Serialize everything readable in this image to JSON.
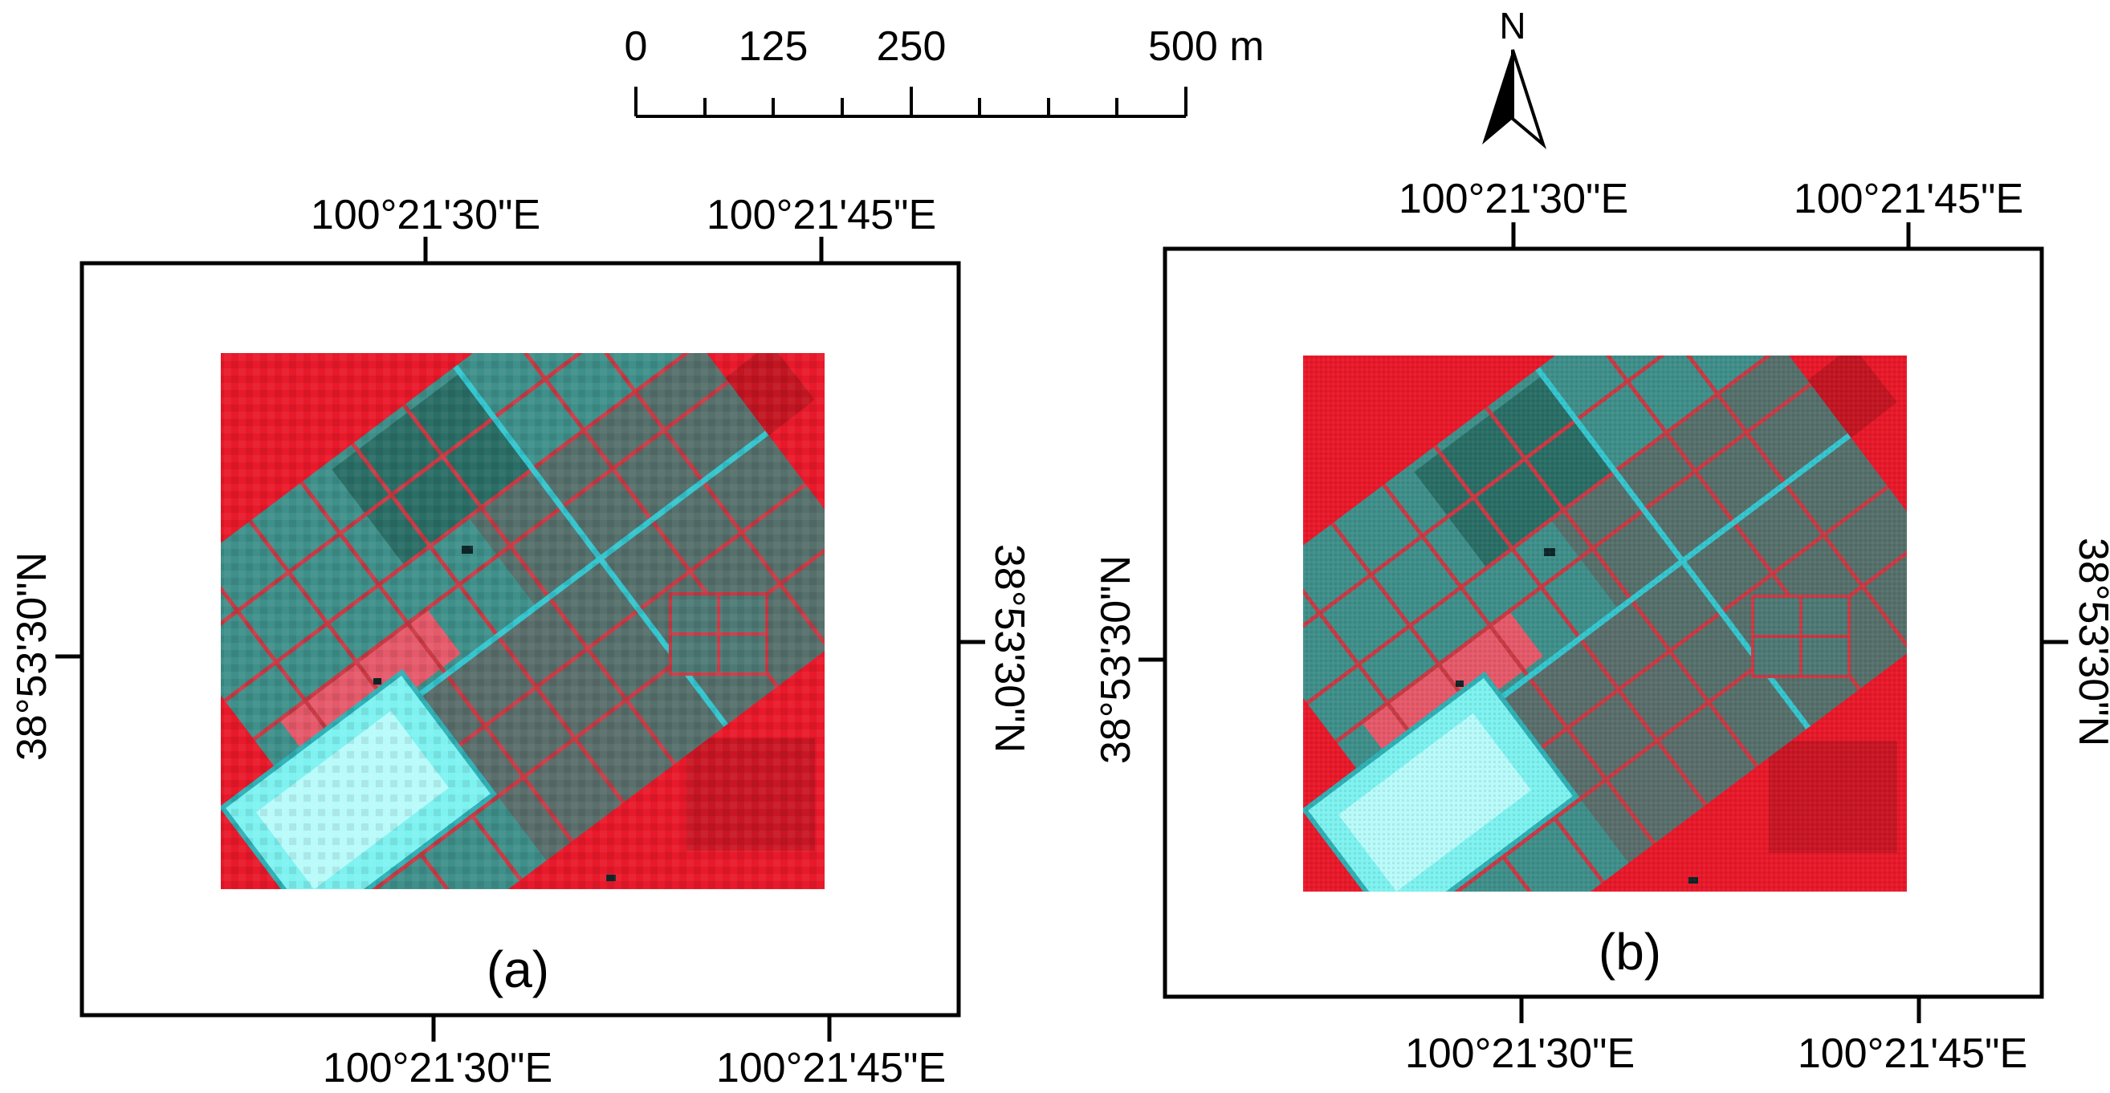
{
  "scale_bar": {
    "labels": [
      "0",
      "125",
      "250",
      "500 m"
    ]
  },
  "north_arrow": {
    "label": "N"
  },
  "panels": [
    {
      "id": "a",
      "caption": "(a)",
      "top_labels": [
        "100°21'30\"E",
        "100°21'45\"E"
      ],
      "bottom_labels": [
        "100°21'30\"E",
        "100°21'45\"E"
      ],
      "left_label": "38°53'30\"N",
      "right_label": "38°53'30\"N",
      "image_resolution": "coarse"
    },
    {
      "id": "b",
      "caption": "(b)",
      "top_labels": [
        "100°21'30\"E",
        "100°21'45\"E"
      ],
      "bottom_labels": [
        "100°21'30\"E",
        "100°21'45\"E"
      ],
      "left_label": "38°53'30\"N",
      "right_label": "38°53'30\"N",
      "image_resolution": "fine"
    }
  ],
  "colors": {
    "vegetation_red": "#e8192a",
    "field_teal": "#3f8f8a",
    "field_dark_teal": "#2a6e66",
    "field_grey": "#56706c",
    "bright_cyan": "#7ef2f0",
    "road_cyan": "#35c6cf",
    "boundary_red": "#c83a44",
    "pink_field": "#e55a6a"
  }
}
